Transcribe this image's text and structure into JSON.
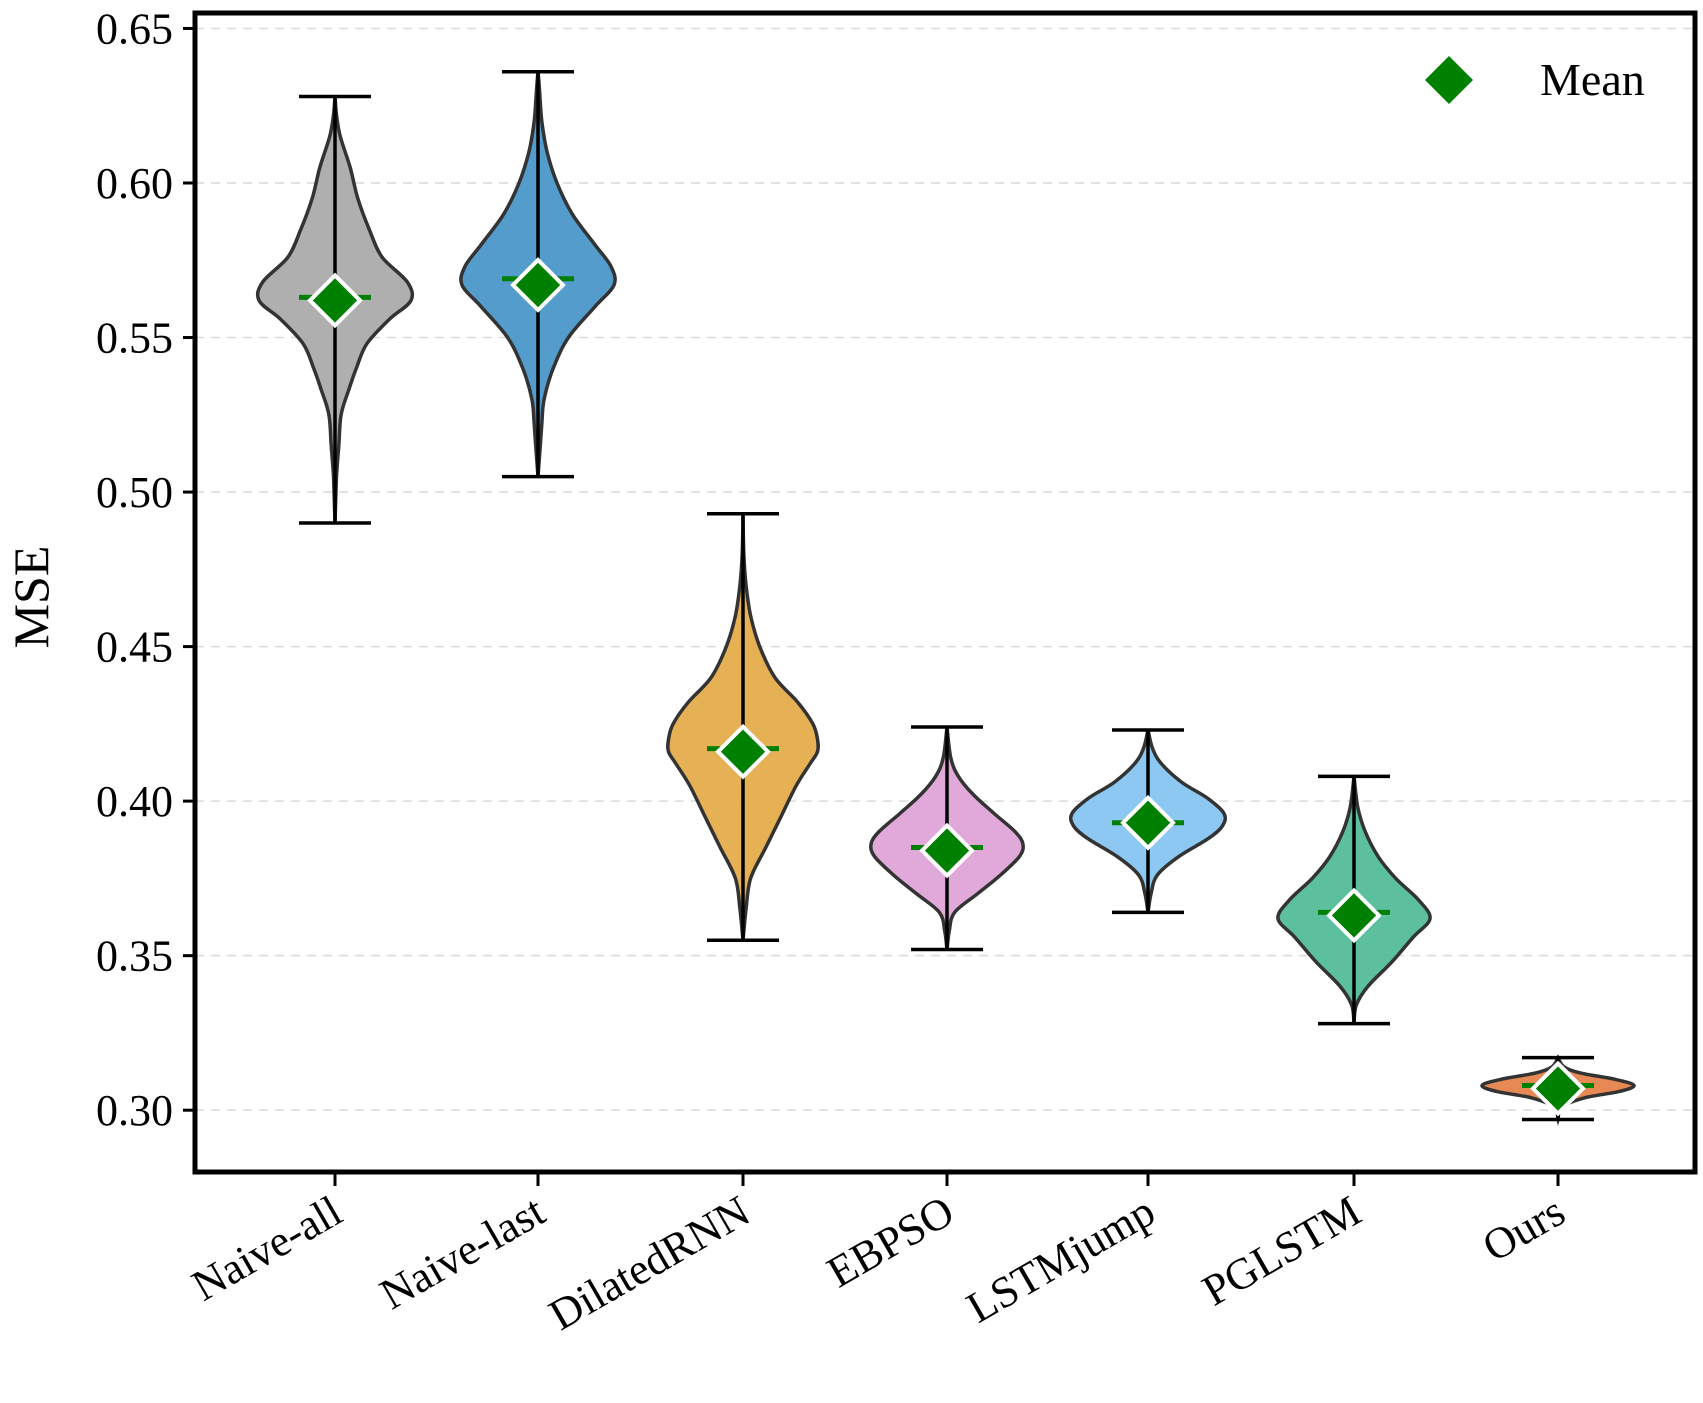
{
  "chart_data": {
    "type": "violin",
    "title": "",
    "xlabel": "",
    "ylabel": "MSE",
    "ylim": [
      0.28,
      0.655
    ],
    "yticks": [
      0.3,
      0.35,
      0.4,
      0.45,
      0.5,
      0.55,
      0.6,
      0.65
    ],
    "ytick_labels": [
      "0.30",
      "0.35",
      "0.40",
      "0.45",
      "0.50",
      "0.55",
      "0.60",
      "0.65"
    ],
    "grid": "horizontal dashed",
    "legend": {
      "placement": "top-right",
      "entries": [
        {
          "label": "Mean",
          "marker": "diamond",
          "color": "#008000"
        }
      ]
    },
    "mean_marker_color": "#008000",
    "series": [
      {
        "name": "Naive-all",
        "min": 0.49,
        "max": 0.628,
        "mean": 0.562,
        "median": 0.563,
        "color": "#ababab",
        "profile": [
          [
            0.49,
            0.0
          ],
          [
            0.505,
            0.02
          ],
          [
            0.515,
            0.05
          ],
          [
            0.525,
            0.08
          ],
          [
            0.533,
            0.18
          ],
          [
            0.54,
            0.28
          ],
          [
            0.548,
            0.42
          ],
          [
            0.556,
            0.72
          ],
          [
            0.562,
            1.0
          ],
          [
            0.568,
            0.95
          ],
          [
            0.576,
            0.62
          ],
          [
            0.585,
            0.45
          ],
          [
            0.595,
            0.3
          ],
          [
            0.605,
            0.2
          ],
          [
            0.615,
            0.07
          ],
          [
            0.622,
            0.02
          ],
          [
            0.628,
            0.0
          ]
        ]
      },
      {
        "name": "Naive-last",
        "min": 0.505,
        "max": 0.636,
        "mean": 0.567,
        "median": 0.569,
        "color": "#4a97c9",
        "profile": [
          [
            0.505,
            0.0
          ],
          [
            0.515,
            0.03
          ],
          [
            0.522,
            0.05
          ],
          [
            0.53,
            0.08
          ],
          [
            0.54,
            0.2
          ],
          [
            0.55,
            0.4
          ],
          [
            0.56,
            0.75
          ],
          [
            0.567,
            1.0
          ],
          [
            0.573,
            0.96
          ],
          [
            0.58,
            0.75
          ],
          [
            0.59,
            0.45
          ],
          [
            0.6,
            0.25
          ],
          [
            0.61,
            0.12
          ],
          [
            0.62,
            0.05
          ],
          [
            0.63,
            0.02
          ],
          [
            0.636,
            0.0
          ]
        ]
      },
      {
        "name": "DilatedRNN",
        "min": 0.355,
        "max": 0.493,
        "mean": 0.416,
        "median": 0.417,
        "color": "#e5ad4b",
        "profile": [
          [
            0.355,
            0.0
          ],
          [
            0.365,
            0.04
          ],
          [
            0.375,
            0.1
          ],
          [
            0.385,
            0.3
          ],
          [
            0.395,
            0.5
          ],
          [
            0.405,
            0.7
          ],
          [
            0.412,
            0.88
          ],
          [
            0.416,
            0.98
          ],
          [
            0.42,
            0.98
          ],
          [
            0.425,
            0.92
          ],
          [
            0.432,
            0.72
          ],
          [
            0.44,
            0.42
          ],
          [
            0.45,
            0.22
          ],
          [
            0.46,
            0.1
          ],
          [
            0.47,
            0.04
          ],
          [
            0.48,
            0.01
          ],
          [
            0.493,
            0.0
          ]
        ]
      },
      {
        "name": "EBPSO",
        "min": 0.352,
        "max": 0.424,
        "mean": 0.384,
        "median": 0.385,
        "color": "#dfa4d7",
        "profile": [
          [
            0.352,
            0.0
          ],
          [
            0.358,
            0.03
          ],
          [
            0.364,
            0.1
          ],
          [
            0.37,
            0.4
          ],
          [
            0.376,
            0.7
          ],
          [
            0.382,
            0.95
          ],
          [
            0.386,
            1.0
          ],
          [
            0.39,
            0.9
          ],
          [
            0.396,
            0.62
          ],
          [
            0.402,
            0.35
          ],
          [
            0.408,
            0.15
          ],
          [
            0.414,
            0.05
          ],
          [
            0.424,
            0.0
          ]
        ]
      },
      {
        "name": "LSTMjump",
        "min": 0.364,
        "max": 0.423,
        "mean": 0.393,
        "median": 0.393,
        "color": "#86c5f0",
        "profile": [
          [
            0.364,
            0.0
          ],
          [
            0.37,
            0.04
          ],
          [
            0.376,
            0.12
          ],
          [
            0.382,
            0.4
          ],
          [
            0.388,
            0.8
          ],
          [
            0.392,
            0.98
          ],
          [
            0.396,
            1.0
          ],
          [
            0.401,
            0.78
          ],
          [
            0.406,
            0.45
          ],
          [
            0.412,
            0.18
          ],
          [
            0.417,
            0.06
          ],
          [
            0.423,
            0.0
          ]
        ]
      },
      {
        "name": "PGLSTM",
        "min": 0.328,
        "max": 0.408,
        "mean": 0.363,
        "median": 0.364,
        "color": "#53bd9a",
        "profile": [
          [
            0.328,
            0.0
          ],
          [
            0.334,
            0.03
          ],
          [
            0.34,
            0.18
          ],
          [
            0.348,
            0.5
          ],
          [
            0.356,
            0.78
          ],
          [
            0.362,
            1.0
          ],
          [
            0.368,
            0.85
          ],
          [
            0.375,
            0.55
          ],
          [
            0.382,
            0.32
          ],
          [
            0.39,
            0.15
          ],
          [
            0.398,
            0.05
          ],
          [
            0.408,
            0.0
          ]
        ]
      },
      {
        "name": "Ours",
        "min": 0.297,
        "max": 0.317,
        "mean": 0.307,
        "median": 0.308,
        "color": "#e5834c",
        "profile": [
          [
            0.297,
            0.0
          ],
          [
            0.301,
            0.05
          ],
          [
            0.304,
            0.35
          ],
          [
            0.306,
            0.8
          ],
          [
            0.308,
            1.0
          ],
          [
            0.31,
            0.75
          ],
          [
            0.312,
            0.3
          ],
          [
            0.314,
            0.08
          ],
          [
            0.317,
            0.0
          ]
        ]
      }
    ]
  }
}
